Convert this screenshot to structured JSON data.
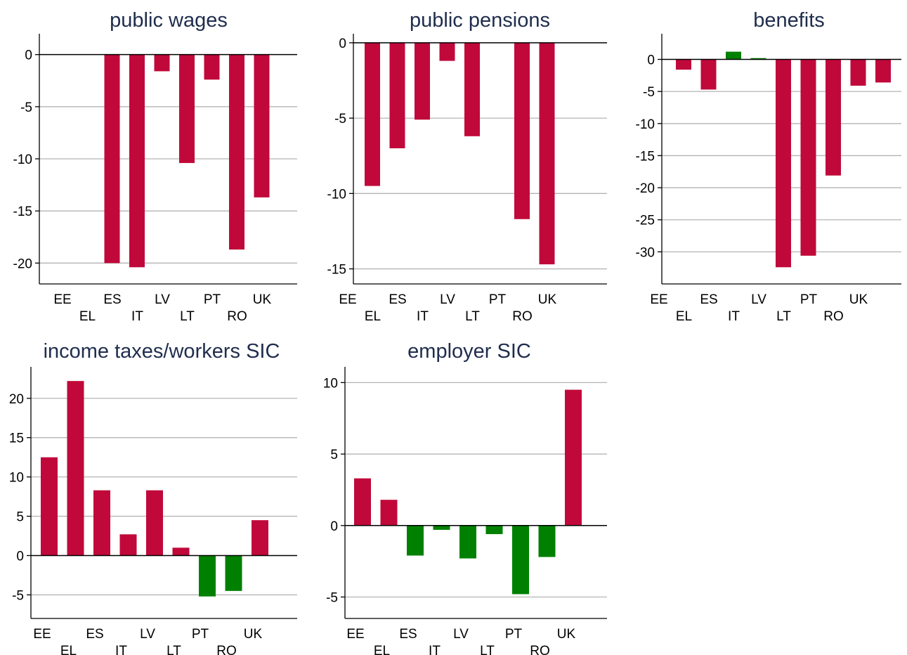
{
  "chart_data": [
    {
      "type": "bar",
      "title": "public wages",
      "categories": [
        "EE",
        "EL",
        "ES",
        "IT",
        "LV",
        "LT",
        "PT",
        "RO",
        "UK"
      ],
      "values": [
        0,
        -20.0,
        -20.4,
        -1.6,
        -10.4,
        -2.4,
        -18.7,
        -13.7,
        0
      ],
      "yticks": [
        0,
        -5,
        -10,
        -15,
        -20
      ],
      "ylim": [
        -22,
        2
      ],
      "grid": true,
      "legend": null
    },
    {
      "type": "bar",
      "title": "public pensions",
      "categories": [
        "EE",
        "EL",
        "ES",
        "IT",
        "LV",
        "LT",
        "PT",
        "RO",
        "UK"
      ],
      "values": [
        -9.5,
        -7.0,
        -5.1,
        -1.2,
        -6.2,
        0,
        -11.7,
        -14.7,
        0
      ],
      "yticks": [
        0,
        -5,
        -10,
        -15
      ],
      "ylim": [
        -16,
        0.6
      ],
      "grid": true,
      "legend": null
    },
    {
      "type": "bar",
      "title": "benefits",
      "categories": [
        "EE",
        "EL",
        "ES",
        "IT",
        "LV",
        "LT",
        "PT",
        "RO",
        "UK"
      ],
      "values": [
        -1.6,
        -4.7,
        1.2,
        0.2,
        -32.4,
        -30.6,
        -18.1,
        -4.1,
        -3.6
      ],
      "yticks": [
        0,
        -5,
        -10,
        -15,
        -20,
        -25,
        -30
      ],
      "ylim": [
        -35,
        4
      ],
      "grid": true,
      "legend": null
    },
    {
      "type": "bar",
      "title": "income taxes/workers SIC",
      "categories": [
        "EE",
        "EL",
        "ES",
        "IT",
        "LV",
        "LT",
        "PT",
        "RO",
        "UK"
      ],
      "values": [
        12.5,
        22.2,
        8.3,
        2.7,
        8.3,
        1.0,
        -5.2,
        -4.5,
        4.5
      ],
      "yticks": [
        20,
        15,
        10,
        5,
        0,
        -5
      ],
      "ylim": [
        -8,
        24
      ],
      "grid": true,
      "legend": null
    },
    {
      "type": "bar",
      "title": "employer SIC",
      "categories": [
        "EE",
        "EL",
        "ES",
        "IT",
        "LV",
        "LT",
        "PT",
        "RO",
        "UK"
      ],
      "values": [
        3.3,
        1.8,
        -2.1,
        -0.3,
        -2.3,
        -0.6,
        -4.8,
        -2.2,
        9.5
      ],
      "yticks": [
        10,
        5,
        0,
        -5
      ],
      "ylim": [
        -6.5,
        11.1
      ],
      "grid": true,
      "legend": null
    }
  ],
  "colors": {
    "negative_effect": "#c0093a",
    "positive_effect": "#008000",
    "title": "#1f2d4d",
    "grid": "#b4b4b4",
    "axis": "#000000"
  }
}
